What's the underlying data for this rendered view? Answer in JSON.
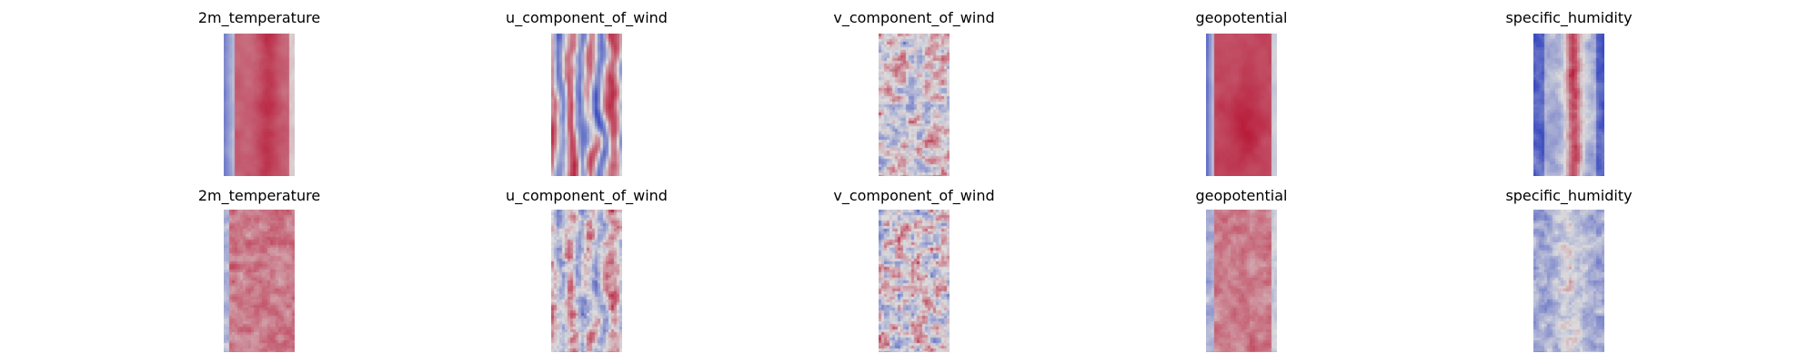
{
  "chart_data": {
    "type": "heatmap",
    "colormap": "coolwarm",
    "colormap_colors": {
      "low": "#3b4cc0",
      "mid": "#dddddd",
      "high": "#b40426"
    },
    "axes": "off",
    "colorbar": false,
    "rows": [
      {
        "panels": [
          {
            "title": "2m_temperature",
            "field": "temperature"
          },
          {
            "title": "u_component_of_wind",
            "field": "u_wind"
          },
          {
            "title": "v_component_of_wind",
            "field": "v_wind"
          },
          {
            "title": "geopotential",
            "field": "geopotential"
          },
          {
            "title": "specific_humidity",
            "field": "humidity"
          }
        ]
      },
      {
        "panels": [
          {
            "title": "2m_temperature",
            "field": "temperature_noisy"
          },
          {
            "title": "u_component_of_wind",
            "field": "u_wind_noisy"
          },
          {
            "title": "v_component_of_wind",
            "field": "v_wind_noisy"
          },
          {
            "title": "geopotential",
            "field": "geopotential_noisy"
          },
          {
            "title": "specific_humidity",
            "field": "humidity_noisy"
          }
        ]
      }
    ]
  }
}
